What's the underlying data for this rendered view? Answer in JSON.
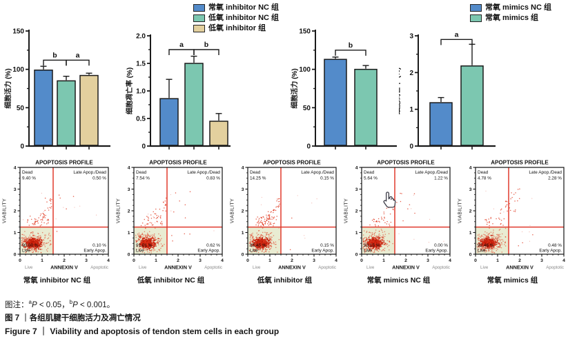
{
  "legend_left": {
    "items": [
      {
        "label": "常氧 inhibitor NC 组",
        "color": "#538bca"
      },
      {
        "label": "低氧 inhibitor NC 组",
        "color": "#7cc7b0"
      },
      {
        "label": "低氧 inhibitor 组",
        "color": "#e3d09e"
      }
    ]
  },
  "legend_right": {
    "items": [
      {
        "label": "常氧 mimics NC 组",
        "color": "#538bca"
      },
      {
        "label": "常氧 mimics 组",
        "color": "#7cc7b0"
      }
    ]
  },
  "flow_common": {
    "title": "APOPTOSIS PROFILE",
    "q_dead": "Dead",
    "q_late": "Late Apop./Dead",
    "q_live": "Live",
    "q_early": "Early Apop.",
    "xlabel": "ANNEXIN V",
    "ylabel": "VIABILITY",
    "x_left": "Live",
    "x_right": "Apoptotic",
    "ticks": [
      "0",
      "1",
      "2",
      "3",
      "4"
    ],
    "gate_color": "#e0392b",
    "point_color": "#e0351c",
    "shade_color": "#e9ecd2"
  },
  "chart_data": [
    {
      "type": "bar",
      "id": "viability-inhibitor",
      "ylabel": "细胞活力 (%)",
      "ylim": [
        0,
        150
      ],
      "yticks": [
        0,
        50,
        100,
        150
      ],
      "tick_labels": [
        "0",
        "50",
        "100",
        "150"
      ],
      "minor_step": 25,
      "categories": [
        "常氧 inhibitor NC 组",
        "低氧 inhibitor NC 组",
        "低氧 inhibitor 组"
      ],
      "values": [
        99,
        85,
        92
      ],
      "errors": [
        5,
        6,
        3
      ],
      "colors": [
        "#538bca",
        "#7cc7b0",
        "#e3d09e"
      ],
      "brackets": [
        {
          "from": 0,
          "to": 1,
          "label": "b",
          "y": 112
        },
        {
          "from": 1,
          "to": 2,
          "label": "a",
          "y": 112
        }
      ]
    },
    {
      "type": "bar",
      "id": "apoptosis-inhibitor",
      "ylabel": "细胞凋亡率 (%)",
      "ylim": [
        0,
        2
      ],
      "yticks": [
        0,
        0.5,
        1.0,
        1.5,
        2.0
      ],
      "tick_labels": [
        "0",
        "0.5",
        "1.0",
        "1.5",
        "2.0"
      ],
      "minor_step": 0.25,
      "categories": [
        "常氧 inhibitor NC 组",
        "低氧 inhibitor NC 组",
        "低氧 inhibitor 组"
      ],
      "values": [
        0.86,
        1.5,
        0.45
      ],
      "errors": [
        0.35,
        0.13,
        0.14
      ],
      "colors": [
        "#538bca",
        "#7cc7b0",
        "#e3d09e"
      ],
      "brackets": [
        {
          "from": 0,
          "to": 1,
          "label": "a",
          "y": 1.75
        },
        {
          "from": 1,
          "to": 2,
          "label": "b",
          "y": 1.75
        }
      ]
    },
    {
      "type": "bar",
      "id": "viability-mimics",
      "ylabel": "细胞活力 (%)",
      "ylim": [
        0,
        150
      ],
      "yticks": [
        0,
        50,
        100,
        150
      ],
      "tick_labels": [
        "0",
        "50",
        "100",
        "150"
      ],
      "minor_step": 25,
      "categories": [
        "常氧 mimics NC 组",
        "常氧 mimics 组"
      ],
      "values": [
        113,
        100
      ],
      "errors": [
        3,
        5
      ],
      "colors": [
        "#538bca",
        "#7cc7b0"
      ],
      "brackets": [
        {
          "from": 0,
          "to": 1,
          "label": "b",
          "y": 125
        }
      ]
    },
    {
      "type": "bar",
      "id": "apoptosis-mimics",
      "ylabel": "细胞凋亡率 (%)",
      "ylim": [
        0,
        3
      ],
      "yticks": [
        0,
        1,
        2,
        3
      ],
      "tick_labels": [
        "0",
        "1",
        "2",
        "3"
      ],
      "minor_step": 0.5,
      "categories": [
        "常氧 mimics NC 组",
        "常氧 mimics 组"
      ],
      "values": [
        1.18,
        2.18
      ],
      "errors": [
        0.14,
        0.59
      ],
      "colors": [
        "#538bca",
        "#7cc7b0"
      ],
      "brackets": [
        {
          "from": 0,
          "to": 1,
          "label": "a",
          "y": 2.9
        }
      ]
    },
    {
      "type": "scatter",
      "id": "flow-1",
      "title": "APOPTOSIS PROFILE",
      "xlabel": "ANNEXIN V",
      "ylabel": "VIABILITY",
      "xlim": [
        0,
        4
      ],
      "ylim": [
        0,
        4
      ],
      "gate_x": 1.5,
      "gate_y": 1.25,
      "quadrants": {
        "dead": "9.40 %",
        "late": "0.50 %",
        "live": "90.00 %",
        "early": "0.10 %"
      },
      "caption": "常氧 inhibitor NC 组"
    },
    {
      "type": "scatter",
      "id": "flow-2",
      "title": "APOPTOSIS PROFILE",
      "xlabel": "ANNEXIN V",
      "ylabel": "VIABILITY",
      "xlim": [
        0,
        4
      ],
      "ylim": [
        0,
        4
      ],
      "gate_x": 1.5,
      "gate_y": 1.25,
      "quadrants": {
        "dead": "7.54 %",
        "late": "0.83 %",
        "live": "91.01 %",
        "early": "0.62 %"
      },
      "caption": "低氧 inhibitor NC 组"
    },
    {
      "type": "scatter",
      "id": "flow-3",
      "title": "APOPTOSIS PROFILE",
      "xlabel": "ANNEXIN V",
      "ylabel": "VIABILITY",
      "xlim": [
        0,
        4
      ],
      "ylim": [
        0,
        4
      ],
      "gate_x": 1.5,
      "gate_y": 1.25,
      "quadrants": {
        "dead": "14.25 %",
        "late": "0.15 %",
        "live": "85.45 %",
        "early": "0.15 %"
      },
      "caption": "低氧 inhibitor 组"
    },
    {
      "type": "scatter",
      "id": "flow-4",
      "title": "APOPTOSIS PROFILE",
      "xlabel": "ANNEXIN V",
      "ylabel": "VIABILITY",
      "xlim": [
        0,
        4
      ],
      "ylim": [
        0,
        4
      ],
      "gate_x": 1.5,
      "gate_y": 1.25,
      "quadrants": {
        "dead": "5.64 %",
        "late": "1.22 %",
        "live": "93.15 %",
        "early": "0.00 %"
      },
      "caption": "常氧 mimics NC 组"
    },
    {
      "type": "scatter",
      "id": "flow-5",
      "title": "APOPTOSIS PROFILE",
      "xlabel": "ANNEXIN V",
      "ylabel": "VIABILITY",
      "xlim": [
        0,
        4
      ],
      "ylim": [
        0,
        4
      ],
      "gate_x": 1.5,
      "gate_y": 1.25,
      "quadrants": {
        "dead": "4.78 %",
        "late": "2.28 %",
        "live": "92.46 %",
        "early": "0.48 %"
      },
      "caption": "常氧 mimics 组"
    }
  ],
  "footer": {
    "note_prefix": "图注：",
    "sup_a": "a",
    "p1": "P",
    "cmp1": " < 0.05，",
    "sup_b": "b",
    "p2": "P",
    "cmp2": " < 0.001。",
    "line2": "图 7 ｜各组肌腱干细胞活力及凋亡情况",
    "line3": "Figure 7 ｜ Viability and apoptosis of tendon stem cells in each group"
  },
  "cursor": {
    "icon": "hand-pointer"
  }
}
